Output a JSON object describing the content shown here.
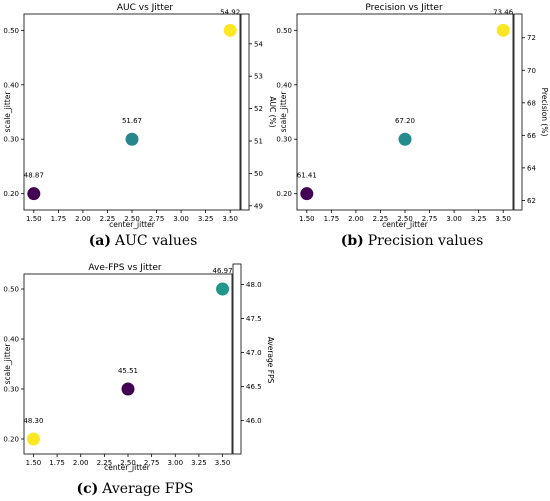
{
  "chart_data": [
    {
      "type": "scatter",
      "title": "AUC vs Jitter",
      "xlabel": "center_jitter",
      "ylabel": "scale_jitter",
      "colorbar_label": "AUC (%)",
      "caption_tag": "(a)",
      "caption_text": "AUC values",
      "xlim": [
        1.4,
        3.6
      ],
      "ylim": [
        0.17,
        0.53
      ],
      "xticks": [
        "1.50",
        "1.75",
        "2.00",
        "2.25",
        "2.50",
        "2.75",
        "3.00",
        "3.25",
        "3.50"
      ],
      "yticks": [
        "0.20",
        "0.30",
        "0.40",
        "0.50"
      ],
      "cticks": [
        "49",
        "50",
        "51",
        "52",
        "53",
        "54"
      ],
      "clim": [
        48.87,
        54.92
      ],
      "points": [
        {
          "x": 1.5,
          "y": 0.2,
          "value": 48.87,
          "label": "48.87"
        },
        {
          "x": 2.5,
          "y": 0.3,
          "value": 51.67,
          "label": "51.67"
        },
        {
          "x": 3.5,
          "y": 0.5,
          "value": 54.92,
          "label": "54.92"
        }
      ]
    },
    {
      "type": "scatter",
      "title": "Precision vs Jitter",
      "xlabel": "center_jitter",
      "ylabel": "scale_jitter",
      "colorbar_label": "Precision (%)",
      "caption_tag": "(b)",
      "caption_text": "Precision values",
      "xlim": [
        1.4,
        3.6
      ],
      "ylim": [
        0.17,
        0.53
      ],
      "xticks": [
        "1.50",
        "1.75",
        "2.00",
        "2.25",
        "2.50",
        "2.75",
        "3.00",
        "3.25",
        "3.50"
      ],
      "yticks": [
        "0.20",
        "0.30",
        "0.40",
        "0.50"
      ],
      "cticks": [
        "62",
        "64",
        "66",
        "68",
        "70",
        "72"
      ],
      "clim": [
        61.41,
        73.46
      ],
      "points": [
        {
          "x": 1.5,
          "y": 0.2,
          "value": 61.41,
          "label": "61.41"
        },
        {
          "x": 2.5,
          "y": 0.3,
          "value": 67.2,
          "label": "67.20"
        },
        {
          "x": 3.5,
          "y": 0.5,
          "value": 73.46,
          "label": "73.46"
        }
      ]
    },
    {
      "type": "scatter",
      "title": "Ave-FPS vs Jitter",
      "xlabel": "center_jitter",
      "ylabel": "scale_jitter",
      "colorbar_label": "Average FPS",
      "caption_tag": "(c)",
      "caption_text": "Average FPS",
      "xlim": [
        1.4,
        3.6
      ],
      "ylim": [
        0.17,
        0.53
      ],
      "xticks": [
        "1.50",
        "1.75",
        "2.00",
        "2.25",
        "2.50",
        "2.75",
        "3.00",
        "3.25",
        "3.50"
      ],
      "yticks": [
        "0.20",
        "0.30",
        "0.40",
        "0.50"
      ],
      "cticks": [
        "46.0",
        "46.5",
        "47.0",
        "47.5",
        "48.0"
      ],
      "clim": [
        45.51,
        48.3
      ],
      "points": [
        {
          "x": 1.5,
          "y": 0.2,
          "value": 48.3,
          "label": "48.30"
        },
        {
          "x": 2.5,
          "y": 0.3,
          "value": 45.51,
          "label": "45.51"
        },
        {
          "x": 3.5,
          "y": 0.5,
          "value": 46.97,
          "label": "46.97"
        }
      ]
    }
  ],
  "colormap": {
    "name": "viridis",
    "stops": [
      "#440154",
      "#482878",
      "#3e4989",
      "#31688e",
      "#26828e",
      "#1f9e89",
      "#35b779",
      "#6ece58",
      "#b5de2b",
      "#fde725"
    ]
  }
}
